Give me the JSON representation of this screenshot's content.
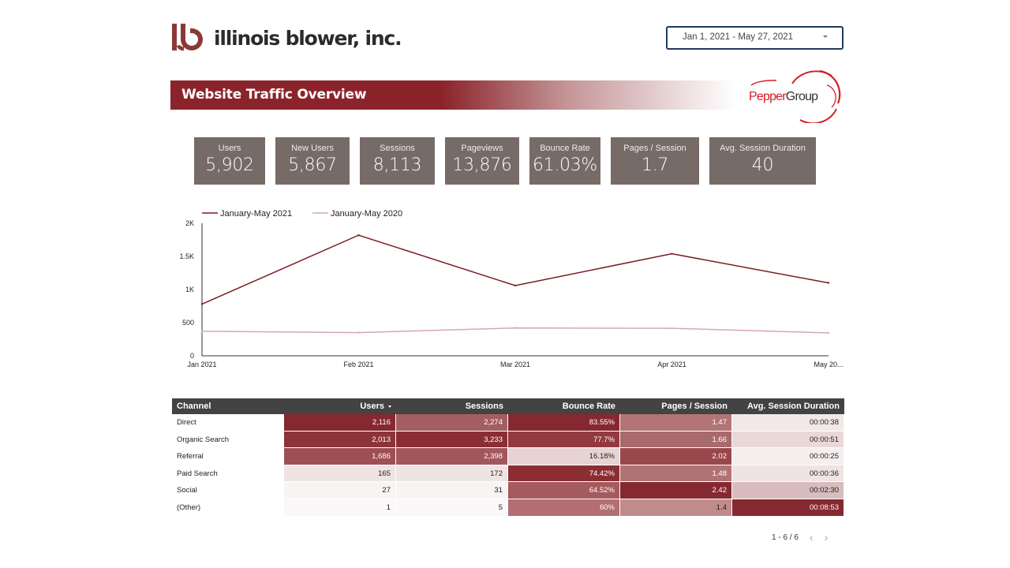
{
  "header": {
    "brand_name": "illinois blower, inc.",
    "date_range": "Jan 1, 2021 - May 27, 2021",
    "banner_title": "Website Traffic Overview",
    "partner_logo": {
      "left": "Pepper",
      "right": "Group"
    }
  },
  "kpis": [
    {
      "label": "Users",
      "value": "5,902"
    },
    {
      "label": "New Users",
      "value": "5,867"
    },
    {
      "label": "Sessions",
      "value": "8,113"
    },
    {
      "label": "Pageviews",
      "value": "13,876"
    },
    {
      "label": "Bounce Rate",
      "value": "61.03%"
    },
    {
      "label": "Pages / Session",
      "value": "1.7"
    },
    {
      "label": "Avg. Session Duration",
      "value": "40"
    }
  ],
  "chart_data": {
    "type": "line",
    "x": [
      "Jan 2021",
      "Feb 2021",
      "Mar 2021",
      "Apr 2021",
      "May 20..."
    ],
    "y_ticks": [
      "0",
      "500",
      "1K",
      "1.5K",
      "2K"
    ],
    "ylim": [
      0,
      2000
    ],
    "series": [
      {
        "name": "January-May 2021",
        "color": "#7b1c22",
        "values": [
          780,
          1820,
          1060,
          1540,
          1100
        ]
      },
      {
        "name": "January-May 2020",
        "color": "#d8a9ab",
        "values": [
          370,
          350,
          420,
          415,
          345
        ]
      }
    ],
    "legend_position": "top-left",
    "grid": false
  },
  "table": {
    "columns": [
      "Channel",
      "Users",
      "Sessions",
      "Bounce Rate",
      "Pages / Session",
      "Avg. Session Duration"
    ],
    "rows": [
      [
        "Direct",
        "2,116",
        "2,274",
        "83.55%",
        "1.47",
        "00:00:38"
      ],
      [
        "Organic Search",
        "2,013",
        "3,233",
        "77.7%",
        "1.66",
        "00:00:51"
      ],
      [
        "Referral",
        "1,686",
        "2,398",
        "16.18%",
        "2.02",
        "00:00:25"
      ],
      [
        "Paid Search",
        "165",
        "172",
        "74.42%",
        "1.48",
        "00:00:36"
      ],
      [
        "Social",
        "27",
        "31",
        "64.52%",
        "2.42",
        "00:02:30"
      ],
      [
        "(Other)",
        "1",
        "5",
        "60%",
        "1.4",
        "00:08:53"
      ]
    ],
    "cell_colors": [
      [
        null,
        "#862830",
        "#a35e62",
        "#862830",
        "#b27476",
        "#f2e8e8"
      ],
      [
        null,
        "#8c343a",
        "#8a2e34",
        "#923a40",
        "#a86a6d",
        "#ead8d8"
      ],
      [
        null,
        "#9e4f54",
        "#a3575c",
        "#e7d3d4",
        "#9a474c",
        "#f5eeee"
      ],
      [
        null,
        "#efe3e3",
        "#efe4e4",
        "#8b2e34",
        "#b07375",
        "#f0e3e3"
      ],
      [
        null,
        "#f8f4f4",
        "#f8f4f4",
        "#a45a5e",
        "#862830",
        "#d9bcbd"
      ],
      [
        null,
        "#faf8f8",
        "#faf8f8",
        "#b26e71",
        "#c08b8d",
        "#862830"
      ]
    ],
    "pagination": "1 - 6 / 6"
  }
}
